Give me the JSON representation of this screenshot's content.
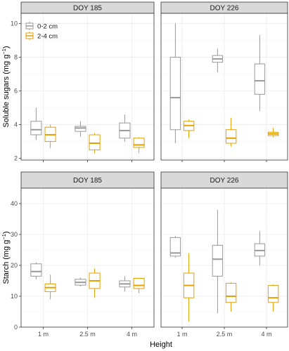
{
  "chart_data": {
    "type": "boxplot",
    "xlabel": "Height",
    "categories": [
      "1 m",
      "2.5 m",
      "4 m"
    ],
    "legend": {
      "placement": "top-left inside first panel",
      "entries": [
        {
          "name": "0-2 cm",
          "color": "#999999"
        },
        {
          "name": "2-4 cm",
          "color": "#E69F00"
        }
      ]
    },
    "rows": [
      {
        "ylabel": "Soluble sugars (mg g",
        "ylabel_sup": "−1",
        "ylabel_close": ")",
        "ylim": [
          1.9,
          10.6
        ],
        "yticks": [
          2,
          4,
          6,
          8,
          10
        ],
        "panels": [
          {
            "title": "DOY 185",
            "series": [
              {
                "name": "0-2 cm",
                "boxes": [
                  {
                    "min": 3.1,
                    "q1": 3.4,
                    "median": 3.7,
                    "q3": 4.2,
                    "max": 5.0
                  },
                  {
                    "min": 3.3,
                    "q1": 3.6,
                    "median": 3.8,
                    "q3": 3.9,
                    "max": 4.2
                  },
                  {
                    "min": 3.0,
                    "q1": 3.2,
                    "median": 3.65,
                    "q3": 4.1,
                    "max": 4.6
                  }
                ]
              },
              {
                "name": "2-4 cm",
                "boxes": [
                  {
                    "min": 2.6,
                    "q1": 3.0,
                    "median": 3.4,
                    "q3": 3.85,
                    "max": 4.0
                  },
                  {
                    "min": 2.3,
                    "q1": 2.5,
                    "median": 2.9,
                    "q3": 3.4,
                    "max": 3.5
                  },
                  {
                    "min": 2.3,
                    "q1": 2.65,
                    "median": 2.8,
                    "q3": 3.2,
                    "max": 3.25
                  }
                ]
              }
            ]
          },
          {
            "title": "DOY 226",
            "series": [
              {
                "name": "0-2 cm",
                "boxes": [
                  {
                    "min": 2.9,
                    "q1": 3.7,
                    "median": 5.6,
                    "q3": 8.0,
                    "max": 10.0
                  },
                  {
                    "min": 7.1,
                    "q1": 7.7,
                    "median": 7.9,
                    "q3": 8.1,
                    "max": 8.5
                  },
                  {
                    "min": 4.8,
                    "q1": 5.8,
                    "median": 6.6,
                    "q3": 7.6,
                    "max": 9.3
                  }
                ]
              },
              {
                "name": "2-4 cm",
                "boxes": [
                  {
                    "min": 3.2,
                    "q1": 3.65,
                    "median": 3.95,
                    "q3": 4.2,
                    "max": 4.3
                  },
                  {
                    "min": 2.7,
                    "q1": 2.9,
                    "median": 3.2,
                    "q3": 3.7,
                    "max": 4.4
                  },
                  {
                    "min": 3.25,
                    "q1": 3.35,
                    "median": 3.45,
                    "q3": 3.55,
                    "max": 3.8
                  }
                ]
              }
            ]
          }
        ]
      },
      {
        "ylabel": "Starch (mg g",
        "ylabel_sup": "−1",
        "ylabel_close": ")",
        "ylim": [
          0,
          45
        ],
        "yticks": [
          0,
          10,
          20,
          30,
          40
        ],
        "panels": [
          {
            "title": "DOY 185",
            "series": [
              {
                "name": "0-2 cm",
                "boxes": [
                  {
                    "min": 15.5,
                    "q1": 16.5,
                    "median": 18.0,
                    "q3": 20.5,
                    "max": 21.0
                  },
                  {
                    "min": 13.2,
                    "q1": 13.6,
                    "median": 14.5,
                    "q3": 15.5,
                    "max": 16.0
                  },
                  {
                    "min": 11.5,
                    "q1": 13.0,
                    "median": 14.0,
                    "q3": 15.0,
                    "max": 16.5
                  }
                ]
              },
              {
                "name": "2-4 cm",
                "boxes": [
                  {
                    "min": 9.0,
                    "q1": 11.5,
                    "median": 12.8,
                    "q3": 14.0,
                    "max": 17.0
                  },
                  {
                    "min": 9.5,
                    "q1": 12.5,
                    "median": 15.0,
                    "q3": 17.5,
                    "max": 19.0
                  },
                  {
                    "min": 11.0,
                    "q1": 12.5,
                    "median": 13.5,
                    "q3": 15.8,
                    "max": 16.0
                  }
                ]
              }
            ]
          },
          {
            "title": "DOY 226",
            "series": [
              {
                "name": "0-2 cm",
                "boxes": [
                  {
                    "min": 22.5,
                    "q1": 23.0,
                    "median": 24.0,
                    "q3": 29.0,
                    "max": 29.5
                  },
                  {
                    "min": 4.5,
                    "q1": 16.5,
                    "median": 22.0,
                    "q3": 26.5,
                    "max": 38.0
                  },
                  {
                    "min": 20.0,
                    "q1": 23.0,
                    "median": 24.8,
                    "q3": 27.0,
                    "max": 31.0
                  }
                ]
              },
              {
                "name": "2-4 cm",
                "boxes": [
                  {
                    "min": 1.8,
                    "q1": 9.5,
                    "median": 13.5,
                    "q3": 17.5,
                    "max": 24.0
                  },
                  {
                    "min": 5.0,
                    "q1": 8.0,
                    "median": 10.0,
                    "q3": 14.2,
                    "max": 14.5
                  },
                  {
                    "min": 5.0,
                    "q1": 8.0,
                    "median": 9.5,
                    "q3": 13.5,
                    "max": 13.8
                  }
                ]
              }
            ]
          }
        ]
      }
    ]
  }
}
